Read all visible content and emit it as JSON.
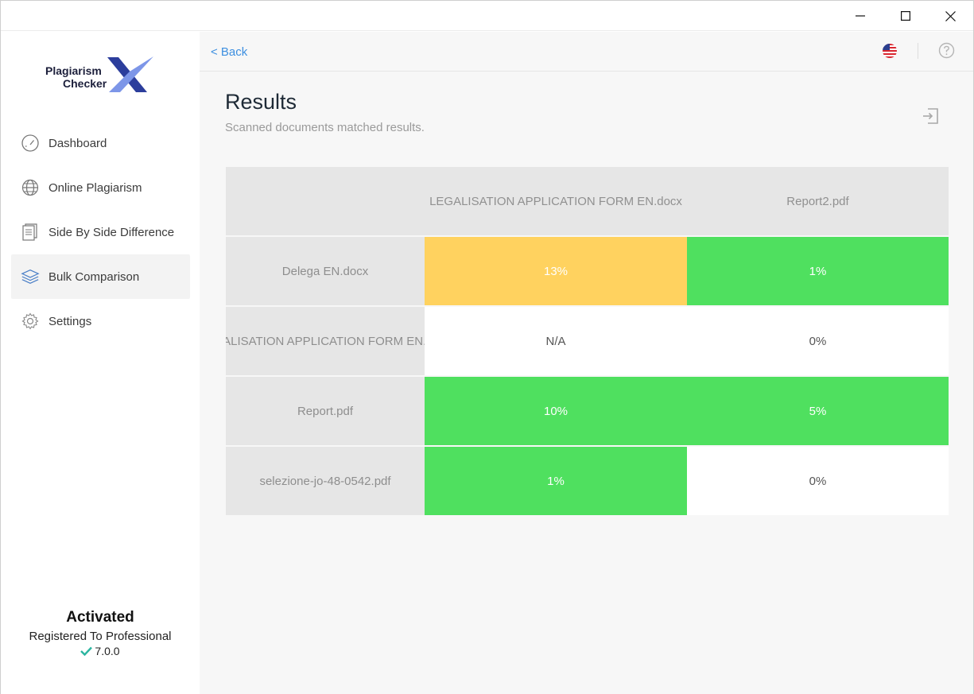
{
  "window": {
    "controls": [
      "minimize",
      "maximize",
      "close"
    ]
  },
  "sidebar": {
    "logo": {
      "line1": "Plagiarism",
      "line2": "Checker",
      "mark": "X"
    },
    "items": [
      {
        "label": "Dashboard",
        "icon": "gauge-icon",
        "active": false
      },
      {
        "label": "Online Plagiarism",
        "icon": "globe-icon",
        "active": false
      },
      {
        "label": "Side By Side Difference",
        "icon": "document-icon",
        "active": false
      },
      {
        "label": "Bulk Comparison",
        "icon": "layers-icon",
        "active": true
      },
      {
        "label": "Settings",
        "icon": "gear-icon",
        "active": false
      }
    ],
    "footer": {
      "status": "Activated",
      "registered": "Registered To Professional",
      "version": "7.0.0"
    }
  },
  "topbar": {
    "back_label": "< Back"
  },
  "page": {
    "title": "Results",
    "subtitle": "Scanned documents matched results."
  },
  "results": {
    "columns": [
      "",
      "LEGALISATION APPLICATION FORM EN.docx",
      "Report2.pdf"
    ],
    "rows": [
      {
        "name": "Delega EN.docx",
        "values": [
          "13%",
          "1%"
        ],
        "colors": [
          "#ffd25f",
          "#4fe05f"
        ]
      },
      {
        "name": "LEGALISATION APPLICATION FORM EN.docx",
        "values": [
          "N/A",
          "0%"
        ],
        "colors": [
          "#ffffff",
          "#ffffff"
        ]
      },
      {
        "name": "Report.pdf",
        "values": [
          "10%",
          "5%"
        ],
        "colors": [
          "#4fe05f",
          "#4fe05f"
        ]
      },
      {
        "name": "selezione-jo-48-0542.pdf",
        "values": [
          "1%",
          "0%"
        ],
        "colors": [
          "#4fe05f",
          "#ffffff"
        ]
      }
    ]
  },
  "colors": {
    "accent": "#3d8fe0",
    "high": "#ffd25f",
    "low": "#4fe05f",
    "none": "#ffffff",
    "check": "#2bb5a0"
  }
}
